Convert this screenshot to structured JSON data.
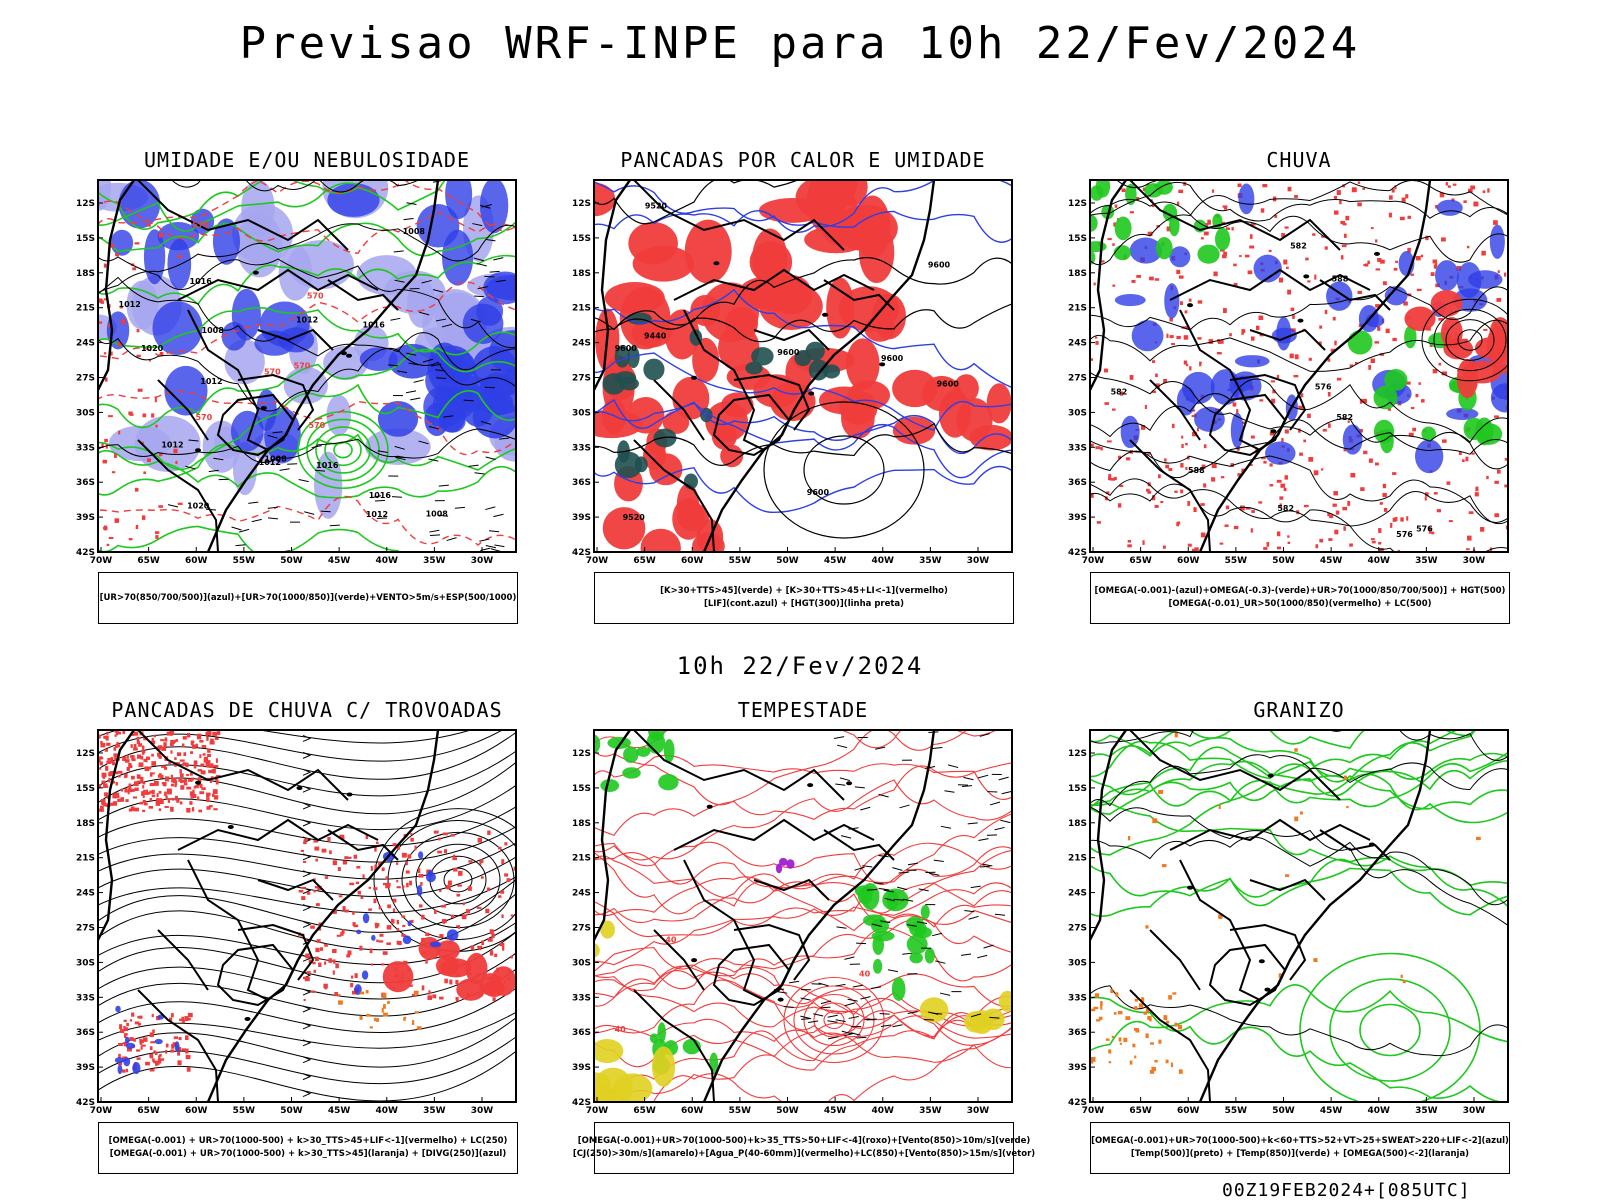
{
  "page": {
    "title": "Previsao WRF-INPE  para 10h 22/Fev/2024",
    "subtitle": "10h 22/Fev/2024",
    "footer": "00Z19FEB2024+[085UTC]"
  },
  "map_axes": {
    "lat_ticks": [
      "12S",
      "15S",
      "18S",
      "21S",
      "24S",
      "27S",
      "30S",
      "33S",
      "36S",
      "39S",
      "42S"
    ],
    "lon_ticks": [
      "70W",
      "65W",
      "60W",
      "55W",
      "50W",
      "45W",
      "40W",
      "35W",
      "30W"
    ]
  },
  "colors": {
    "red": "#f03c3c",
    "blue": "#2f3fe6",
    "green": "#1ec81e",
    "lightblue": "#a6a6f0",
    "darkgreen": "#1f5050",
    "yellow": "#e0d020",
    "orange": "#f07a20",
    "purple": "#a020d0"
  },
  "panels": [
    {
      "id": "umidade",
      "title": "UMIDADE E/OU NEBULOSIDADE",
      "legend": [
        "[UR>70(850/700/500)](azul)+[UR>70(1000/850)](verde)+VENTO>5m/s+ESP(500/1000)"
      ],
      "labels": [
        "1012",
        "1012",
        "1016",
        "1008",
        "1008",
        "1016",
        "1020",
        "1012",
        "1012",
        "1016",
        "1012",
        "1008",
        "1008",
        "1012",
        "1016",
        "1020",
        "570",
        "570",
        "570",
        "570",
        "570",
        "570"
      ]
    },
    {
      "id": "pancadas_calor",
      "title": "PANCADAS POR CALOR E UMIDADE",
      "legend": [
        "[K>30+TTS>45](verde) + [K>30+TTS>45+LI<-1](vermelho)",
        "[LIF](cont.azul) + [HGT(300)](linha preta)"
      ],
      "labels": [
        "9600",
        "9600",
        "9520",
        "9600",
        "9600",
        "9440",
        "9520",
        "9600",
        "9600"
      ]
    },
    {
      "id": "chuva",
      "title": "CHUVA",
      "legend": [
        "[OMEGA(-0.001)-(azul)+OMEGA(-0.3)-(verde)+UR>70(1000/850/700/500)] + HGT(500)",
        "[OMEGA(-0.01)_UR>50(1000/850)(vermelho) + LC(500)"
      ],
      "labels": [
        "582",
        "582",
        "588",
        "582",
        "588",
        "582",
        "576",
        "576",
        "576"
      ]
    },
    {
      "id": "trovoadas",
      "title": "PANCADAS DE CHUVA C/ TROVOADAS",
      "legend": [
        "[OMEGA(-0.001) + UR>70(1000-500) + k>30_TTS>45+LIF<-1](vermelho) + LC(250)",
        "[OMEGA(-0.001) + UR>70(1000-500) + k>30_TTS>45](laranja) + [DIVG(250)](azul)"
      ],
      "labels": []
    },
    {
      "id": "tempestade",
      "title": "TEMPESTADE",
      "legend": [
        "[OMEGA(-0.001)+UR>70(1000-500)+k>35_TTS>50+LIF<-4](roxo)+[Vento(850)>10m/s](verde)",
        "[CJ(250)>30m/s](amarelo)+[Agua_P(40-60mm)](vermelho)+LC(850)+[Vento(850)>15m/s](vetor)"
      ],
      "labels": [
        "40",
        "40",
        "40"
      ]
    },
    {
      "id": "granizo",
      "title": "GRANIZO",
      "legend": [
        "[OMEGA(-0.001)+UR>70(1000-500)+k<60+TTS>52+VT>25+SWEAT>220+LIF<-2](azul)",
        "[Temp(500)](preto) + [Temp(850)](verde) + [OMEGA(500)<-2](laranja)"
      ],
      "labels": []
    }
  ]
}
